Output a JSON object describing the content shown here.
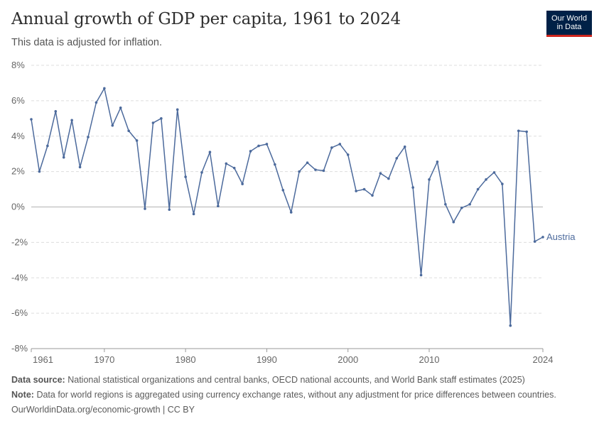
{
  "header": {
    "title": "Annual growth of GDP per capita, 1961 to 2024",
    "subtitle": "This data is adjusted for inflation.",
    "logo_line1": "Our World",
    "logo_line2": "in Data"
  },
  "footer": {
    "source_label": "Data source:",
    "source_text": "National statistical organizations and central banks, OECD national accounts, and World Bank staff estimates (2025)",
    "note_label": "Note:",
    "note_text": "Data for world regions is aggregated using currency exchange rates, without any adjustment for price differences between countries.",
    "url_text": "OurWorldinData.org/economic-growth | CC BY"
  },
  "colors": {
    "series": "#4c6a9c",
    "zero_line": "#b3b3b3",
    "grid": "#dddddd",
    "logo_bg": "#002147",
    "logo_accent": "#ce261e"
  },
  "chart_data": {
    "type": "line",
    "title": "Annual growth of GDP per capita, 1961 to 2024",
    "subtitle": "This data is adjusted for inflation.",
    "xlabel": "",
    "ylabel": "",
    "xlim": [
      1961,
      2024
    ],
    "ylim": [
      -8,
      8
    ],
    "y_ticks": [
      -8,
      -6,
      -4,
      -2,
      0,
      2,
      4,
      6,
      8
    ],
    "y_tick_labels": [
      "-8%",
      "-6%",
      "-4%",
      "-2%",
      "0%",
      "2%",
      "4%",
      "6%",
      "8%"
    ],
    "x_tick_labels": [
      {
        "x": 1961,
        "label": "1961"
      },
      {
        "x": 1970,
        "label": "1970"
      },
      {
        "x": 1980,
        "label": "1980"
      },
      {
        "x": 1990,
        "label": "1990"
      },
      {
        "x": 2000,
        "label": "2000"
      },
      {
        "x": 2010,
        "label": "2010"
      },
      {
        "x": 2024,
        "label": "2024"
      }
    ],
    "grid": true,
    "series": [
      {
        "name": "Austria",
        "x": [
          1961,
          1962,
          1963,
          1964,
          1965,
          1966,
          1967,
          1968,
          1969,
          1970,
          1971,
          1972,
          1973,
          1974,
          1975,
          1976,
          1977,
          1978,
          1979,
          1980,
          1981,
          1982,
          1983,
          1984,
          1985,
          1986,
          1987,
          1988,
          1989,
          1990,
          1991,
          1992,
          1993,
          1994,
          1995,
          1996,
          1997,
          1998,
          1999,
          2000,
          2001,
          2002,
          2003,
          2004,
          2005,
          2006,
          2007,
          2008,
          2009,
          2010,
          2011,
          2012,
          2013,
          2014,
          2015,
          2016,
          2017,
          2018,
          2019,
          2020,
          2021,
          2022,
          2023,
          2024
        ],
        "values": [
          4.95,
          2.0,
          3.45,
          5.4,
          2.8,
          4.9,
          2.25,
          3.95,
          5.9,
          6.7,
          4.6,
          5.6,
          4.3,
          3.75,
          -0.1,
          4.75,
          5.0,
          -0.15,
          5.5,
          1.7,
          -0.4,
          1.95,
          3.1,
          0.05,
          2.45,
          2.2,
          1.3,
          3.15,
          3.45,
          3.55,
          2.4,
          0.95,
          -0.3,
          2.0,
          2.5,
          2.1,
          2.05,
          3.35,
          3.55,
          2.95,
          0.9,
          1.0,
          0.65,
          1.9,
          1.6,
          2.75,
          3.4,
          1.1,
          -3.85,
          1.55,
          2.55,
          0.15,
          -0.85,
          -0.05,
          0.15,
          1.0,
          1.55,
          1.95,
          1.3,
          -6.7,
          4.3,
          4.25,
          -1.95,
          -1.7
        ]
      }
    ]
  }
}
